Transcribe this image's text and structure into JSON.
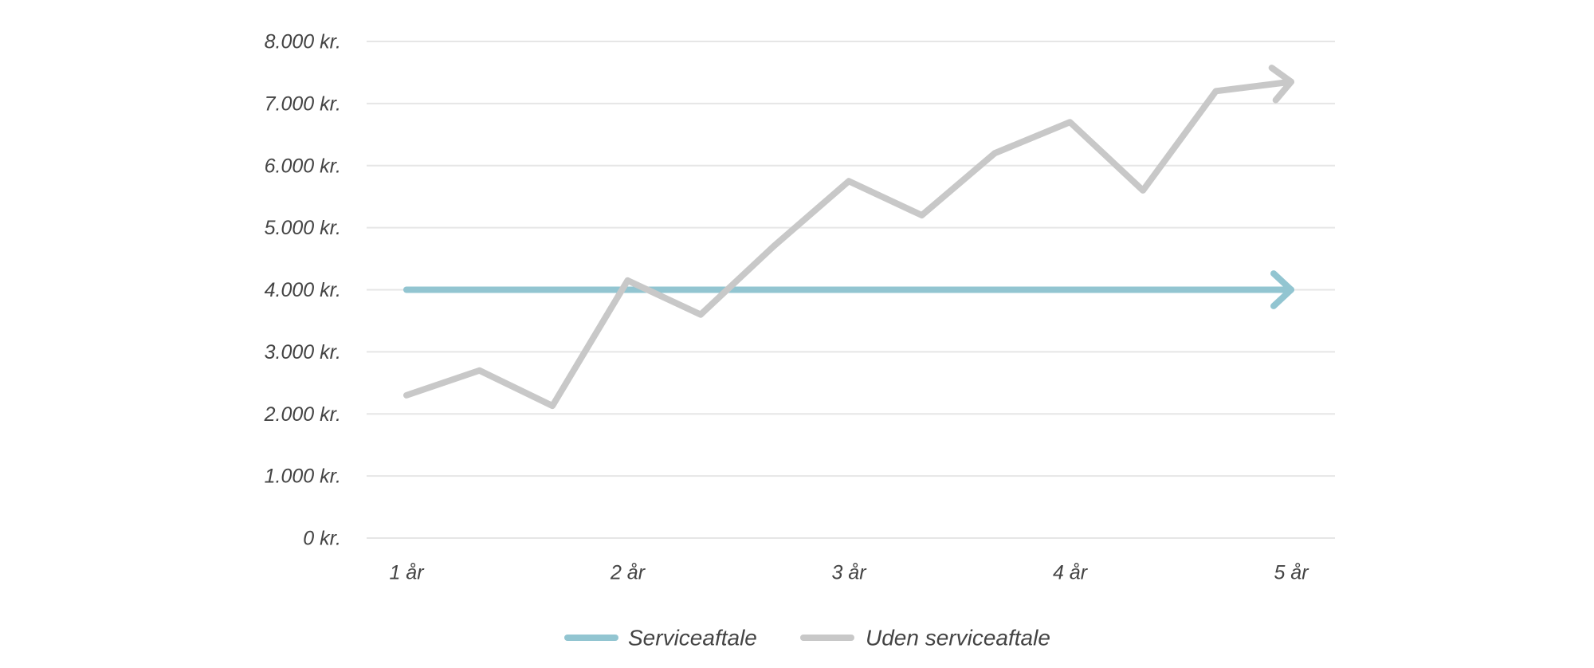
{
  "chart_data": {
    "type": "line",
    "title": "",
    "xlabel": "",
    "ylabel": "",
    "grid": "horizontal",
    "legend_position": "bottom-center",
    "ylim": [
      0,
      8000
    ],
    "xlim": [
      1,
      5
    ],
    "y_ticks": [
      {
        "value": 0,
        "label": "0 kr."
      },
      {
        "value": 1000,
        "label": "1.000 kr."
      },
      {
        "value": 2000,
        "label": "2.000 kr."
      },
      {
        "value": 3000,
        "label": "3.000 kr."
      },
      {
        "value": 4000,
        "label": "4.000 kr."
      },
      {
        "value": 5000,
        "label": "5.000 kr."
      },
      {
        "value": 6000,
        "label": "6.000 kr."
      },
      {
        "value": 7000,
        "label": "7.000 kr."
      },
      {
        "value": 8000,
        "label": "8.000 kr."
      }
    ],
    "x_ticks": [
      {
        "value": 1,
        "label": "1 år"
      },
      {
        "value": 2,
        "label": "2 år"
      },
      {
        "value": 3,
        "label": "3 år"
      },
      {
        "value": 4,
        "label": "4 år"
      },
      {
        "value": 5,
        "label": "5 år"
      }
    ],
    "series": [
      {
        "name": "Serviceaftale",
        "color": "#92c5d1",
        "ends_with_arrow": true,
        "points": [
          [
            1.0,
            4000
          ],
          [
            5.0,
            4000
          ]
        ]
      },
      {
        "name": "Uden serviceaftale",
        "color": "#c8c8c8",
        "ends_with_arrow": true,
        "points": [
          [
            1.0,
            2300
          ],
          [
            1.33,
            2700
          ],
          [
            1.66,
            2130
          ],
          [
            2.0,
            4150
          ],
          [
            2.33,
            3600
          ],
          [
            2.66,
            4700
          ],
          [
            3.0,
            5750
          ],
          [
            3.33,
            5200
          ],
          [
            3.66,
            6200
          ],
          [
            4.0,
            6700
          ],
          [
            4.33,
            5600
          ],
          [
            4.66,
            7200
          ],
          [
            5.0,
            7350
          ]
        ]
      }
    ]
  }
}
